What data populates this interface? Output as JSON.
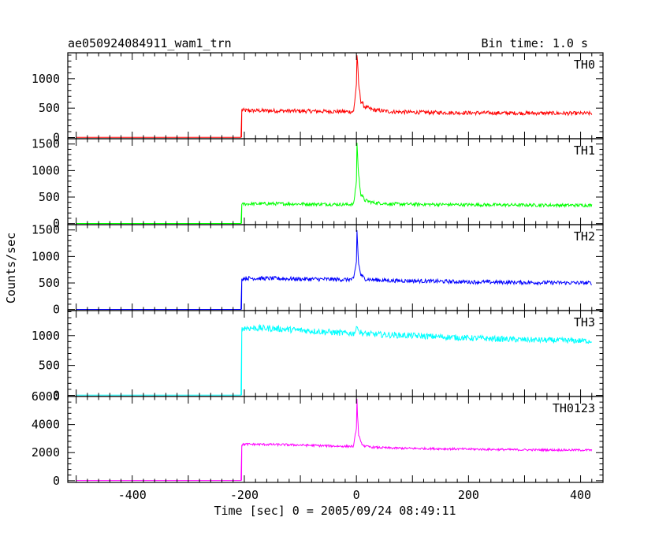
{
  "header": {
    "title": "ae050924084911_wam1_trn",
    "bin_time": "Bin time: 1.0 s"
  },
  "chart_data": {
    "type": "line",
    "xlabel": "Time [sec] 0 = 2005/09/24 08:49:11",
    "ylabel": "Counts/sec",
    "xlim": [
      -515,
      440
    ],
    "x_ticks": [
      "-400",
      "-200",
      "0",
      "200",
      "400"
    ],
    "x_tick_values": [
      -400,
      -200,
      0,
      200,
      400
    ],
    "grid": false,
    "panels": [
      {
        "name": "TH0",
        "color": "#ff0000",
        "ylim": [
          -20,
          1440
        ],
        "y_ticks": [
          "0",
          "500",
          "1000"
        ],
        "y_tick_values": [
          0,
          500,
          1000
        ],
        "x": [
          -500,
          -205,
          -204,
          -200,
          -150,
          -100,
          -50,
          -20,
          -5,
          0,
          1,
          2,
          4,
          8,
          15,
          30,
          60,
          100,
          200,
          300,
          420
        ],
        "values": [
          3,
          3,
          470,
          460,
          455,
          450,
          445,
          440,
          440,
          900,
          1420,
          1250,
          900,
          620,
          520,
          470,
          440,
          430,
          420,
          415,
          410
        ]
      },
      {
        "name": "TH1",
        "color": "#00ff00",
        "ylim": [
          -20,
          1600
        ],
        "y_ticks": [
          "0",
          "500",
          "1000",
          "1500"
        ],
        "y_tick_values": [
          0,
          500,
          1000,
          1500
        ],
        "x": [
          -500,
          -205,
          -204,
          -200,
          -150,
          -100,
          -50,
          -20,
          -5,
          0,
          1,
          2,
          4,
          8,
          15,
          30,
          60,
          100,
          200,
          300,
          420
        ],
        "values": [
          3,
          3,
          360,
          370,
          375,
          370,
          365,
          360,
          365,
          800,
          1540,
          1300,
          900,
          560,
          440,
          395,
          370,
          365,
          355,
          350,
          345
        ]
      },
      {
        "name": "TH2",
        "color": "#0000ff",
        "ylim": [
          -20,
          1600
        ],
        "y_ticks": [
          "0",
          "500",
          "1000",
          "1500"
        ],
        "y_tick_values": [
          0,
          500,
          1000,
          1500
        ],
        "x": [
          -500,
          -205,
          -204,
          -200,
          -150,
          -100,
          -50,
          -20,
          -5,
          0,
          1,
          2,
          4,
          8,
          15,
          30,
          60,
          100,
          200,
          300,
          420
        ],
        "values": [
          3,
          3,
          580,
          590,
          585,
          575,
          570,
          565,
          570,
          900,
          1500,
          1250,
          850,
          650,
          580,
          560,
          545,
          540,
          520,
          510,
          500
        ]
      },
      {
        "name": "TH3",
        "color": "#00ffff",
        "ylim": [
          -20,
          1420
        ],
        "y_ticks": [
          "0",
          "500",
          "1000"
        ],
        "y_tick_values": [
          0,
          500,
          1000
        ],
        "x": [
          -500,
          -205,
          -204,
          -200,
          -150,
          -100,
          -50,
          -20,
          -5,
          0,
          2,
          5,
          15,
          60,
          100,
          200,
          300,
          420
        ],
        "values": [
          3,
          3,
          1100,
          1130,
          1120,
          1090,
          1060,
          1040,
          1040,
          1100,
          1190,
          1060,
          1030,
          1010,
          1000,
          960,
          930,
          910
        ]
      },
      {
        "name": "TH0123",
        "color": "#ff00ff",
        "ylim": [
          -120,
          6000
        ],
        "y_ticks": [
          "0",
          "2000",
          "4000",
          "6000"
        ],
        "y_tick_values": [
          0,
          2000,
          4000,
          6000
        ],
        "x": [
          -500,
          -205,
          -204,
          -200,
          -150,
          -100,
          -50,
          -20,
          -5,
          0,
          1,
          2,
          4,
          8,
          15,
          30,
          60,
          100,
          200,
          300,
          420
        ],
        "values": [
          10,
          10,
          2550,
          2600,
          2580,
          2540,
          2480,
          2450,
          2450,
          3800,
          5800,
          4600,
          3300,
          2700,
          2450,
          2380,
          2330,
          2300,
          2250,
          2200,
          2180
        ]
      }
    ]
  }
}
